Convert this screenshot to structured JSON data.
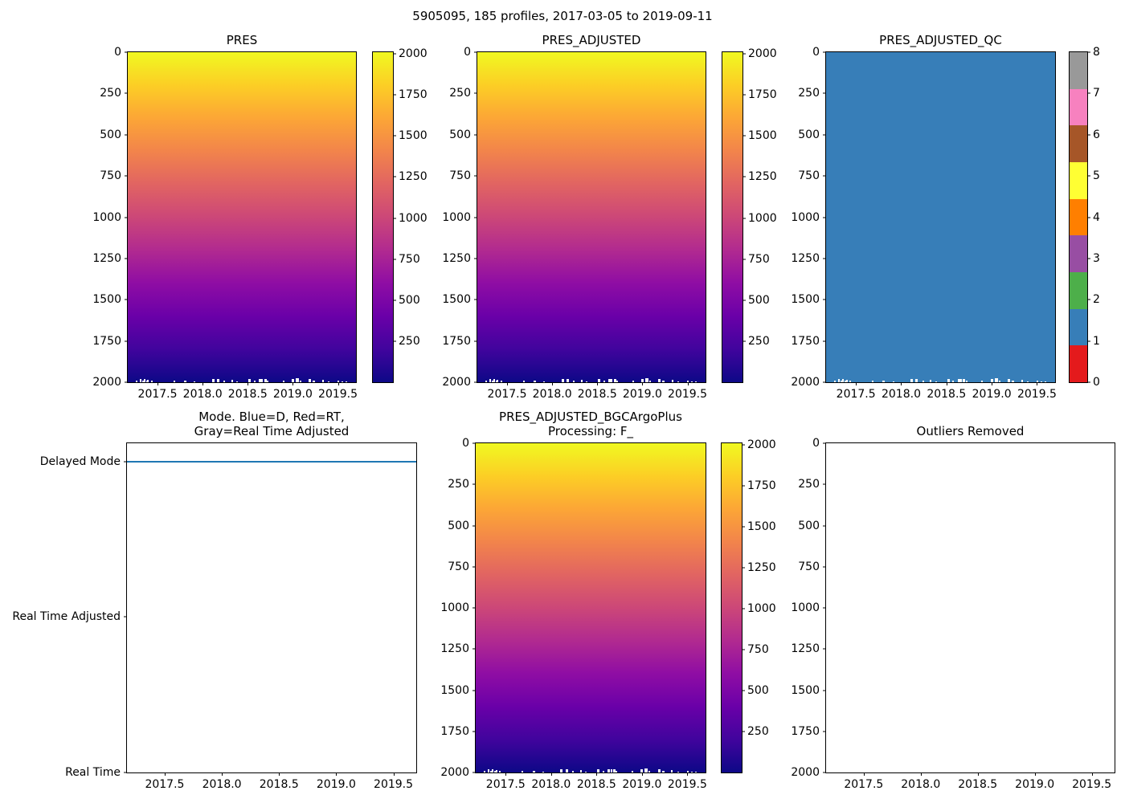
{
  "suptitle": "5905095, 185 profiles, 2017-03-05 to 2019-09-11",
  "colors": {
    "plasma_r_stops": [
      "#f0f921",
      "#fcce25",
      "#fca636",
      "#f2844b",
      "#e16462",
      "#cc4778",
      "#b12a90",
      "#8f0da4",
      "#6a00a8",
      "#41049d",
      "#0d0887"
    ],
    "qc_flag_fill": "#377eb8",
    "mode_line": "#1f77b4",
    "axis": "#000000"
  },
  "panels": {
    "mode": {
      "title_lines": [
        "Mode. Blue=D, Red=RT,",
        "Gray=Real Time Adjusted"
      ]
    },
    "bgc": {
      "title_lines": [
        "PRES_ADJUSTED_BGCArgoPlus",
        "Processing: F_"
      ]
    }
  },
  "chart_data": [
    {
      "type": "heatmap",
      "title": "PRES",
      "x_range": [
        2017.17,
        2019.7
      ],
      "x_ticks": [
        2017.5,
        2018.0,
        2018.5,
        2019.0,
        2019.5
      ],
      "y_range": [
        2000,
        0
      ],
      "y_ticks": [
        0,
        250,
        500,
        750,
        1000,
        1250,
        1500,
        1750,
        2000
      ],
      "colormap": "plasma_r",
      "value_range": [
        0,
        2000
      ],
      "colorbar_ticks": [
        2000,
        1750,
        1500,
        1250,
        1000,
        750,
        500,
        250
      ],
      "pattern": "pressure increases linearly with depth: ~0 dbar (yellow) at top to ~2000 dbar (dark navy) at bottom, uniform across all 185 profile columns",
      "missing_data_gaps": [
        {
          "x": 3.4,
          "w": 2,
          "h": 2
        },
        {
          "x": 5.2,
          "w": 2,
          "h": 4
        },
        {
          "x": 6.2,
          "w": 2,
          "h": 2
        },
        {
          "x": 6.9,
          "w": 2,
          "h": 4
        },
        {
          "x": 8.0,
          "w": 2,
          "h": 2
        },
        {
          "x": 8.6,
          "w": 2,
          "h": 3
        },
        {
          "x": 10.3,
          "w": 2,
          "h": 2
        },
        {
          "x": 20.0,
          "w": 2,
          "h": 2
        },
        {
          "x": 24.7,
          "w": 3,
          "h": 2
        },
        {
          "x": 29.0,
          "w": 2,
          "h": 1
        },
        {
          "x": 36.8,
          "w": 3,
          "h": 4
        },
        {
          "x": 39.0,
          "w": 3,
          "h": 4
        },
        {
          "x": 42.0,
          "w": 2,
          "h": 2
        },
        {
          "x": 45.4,
          "w": 2,
          "h": 3
        },
        {
          "x": 47.7,
          "w": 2,
          "h": 1
        },
        {
          "x": 52.9,
          "w": 3,
          "h": 4
        },
        {
          "x": 55.2,
          "w": 2,
          "h": 2
        },
        {
          "x": 57.5,
          "w": 3,
          "h": 4
        },
        {
          "x": 58.6,
          "w": 2,
          "h": 4
        },
        {
          "x": 59.8,
          "w": 3,
          "h": 4
        },
        {
          "x": 60.9,
          "w": 2,
          "h": 2
        },
        {
          "x": 67.8,
          "w": 2,
          "h": 2
        },
        {
          "x": 71.8,
          "w": 3,
          "h": 4
        },
        {
          "x": 73.6,
          "w": 4,
          "h": 5
        },
        {
          "x": 75.3,
          "w": 2,
          "h": 2
        },
        {
          "x": 79.3,
          "w": 3,
          "h": 4
        },
        {
          "x": 81.0,
          "w": 3,
          "h": 2
        },
        {
          "x": 85.1,
          "w": 2,
          "h": 3
        },
        {
          "x": 87.7,
          "w": 2,
          "h": 1
        },
        {
          "x": 92.0,
          "w": 2,
          "h": 2
        },
        {
          "x": 93.7,
          "w": 2,
          "h": 1
        },
        {
          "x": 95.4,
          "w": 2,
          "h": 1
        }
      ]
    },
    {
      "type": "heatmap",
      "title": "PRES_ADJUSTED",
      "x_range": [
        2017.17,
        2019.7
      ],
      "x_ticks": [
        2017.5,
        2018.0,
        2018.5,
        2019.0,
        2019.5
      ],
      "y_range": [
        2000,
        0
      ],
      "y_ticks": [
        0,
        250,
        500,
        750,
        1000,
        1250,
        1500,
        1750,
        2000
      ],
      "colormap": "plasma_r",
      "value_range": [
        0,
        2000
      ],
      "colorbar_ticks": [
        2000,
        1750,
        1500,
        1250,
        1000,
        750,
        500,
        250
      ],
      "pattern": "identical appearance to PRES panel"
    },
    {
      "type": "heatmap",
      "title": "PRES_ADJUSTED_QC",
      "x_range": [
        2017.17,
        2019.7
      ],
      "x_ticks": [
        2017.5,
        2018.0,
        2018.5,
        2019.0,
        2019.5
      ],
      "y_range": [
        2000,
        0
      ],
      "y_ticks": [
        0,
        250,
        500,
        750,
        1000,
        1250,
        1500,
        1750,
        2000
      ],
      "constant_value": 1,
      "palette_values_0_to_8": [
        "#e41a1c",
        "#377eb8",
        "#4daf4a",
        "#984ea3",
        "#ff7f00",
        "#ffff33",
        "#a65628",
        "#f781bf",
        "#999999"
      ],
      "colorbar_ticks": [
        8,
        7,
        6,
        5,
        4,
        3,
        2,
        1,
        0
      ],
      "pattern": "constant QC flag = 1 (blue) over entire panel, same white gaps at bottom edge"
    },
    {
      "type": "line",
      "title": "Mode. Blue=D, Red=RT, Gray=Real Time Adjusted",
      "x_range": [
        2017.17,
        2019.7
      ],
      "x_ticks": [
        2017.5,
        2018.0,
        2018.5,
        2019.0,
        2019.5
      ],
      "y_categories": [
        "Real Time",
        "Real Time Adjusted",
        "Delayed Mode"
      ],
      "series": [
        {
          "name": "mode",
          "constant_value": "Delayed Mode",
          "style": "solid horizontal line spanning full x range"
        }
      ]
    },
    {
      "type": "heatmap",
      "title": "PRES_ADJUSTED_BGCArgoPlus Processing: F_",
      "x_range": [
        2017.17,
        2019.7
      ],
      "x_ticks": [
        2017.5,
        2018.0,
        2018.5,
        2019.0,
        2019.5
      ],
      "y_range": [
        2000,
        0
      ],
      "y_ticks": [
        0,
        250,
        500,
        750,
        1000,
        1250,
        1500,
        1750,
        2000
      ],
      "colormap": "plasma_r",
      "value_range": [
        0,
        2000
      ],
      "colorbar_ticks": [
        2000,
        1750,
        1500,
        1250,
        1000,
        750,
        500,
        250
      ],
      "pattern": "identical appearance to PRES panel"
    },
    {
      "type": "empty",
      "title": "Outliers Removed",
      "x_range": [
        2017.17,
        2019.7
      ],
      "x_ticks": [
        2017.5,
        2018.0,
        2018.5,
        2019.0,
        2019.5
      ],
      "y_range": [
        2000,
        0
      ],
      "y_ticks": [
        0,
        250,
        500,
        750,
        1000,
        1250,
        1500,
        1750,
        2000
      ],
      "pattern": "axes only, no data plotted"
    }
  ]
}
